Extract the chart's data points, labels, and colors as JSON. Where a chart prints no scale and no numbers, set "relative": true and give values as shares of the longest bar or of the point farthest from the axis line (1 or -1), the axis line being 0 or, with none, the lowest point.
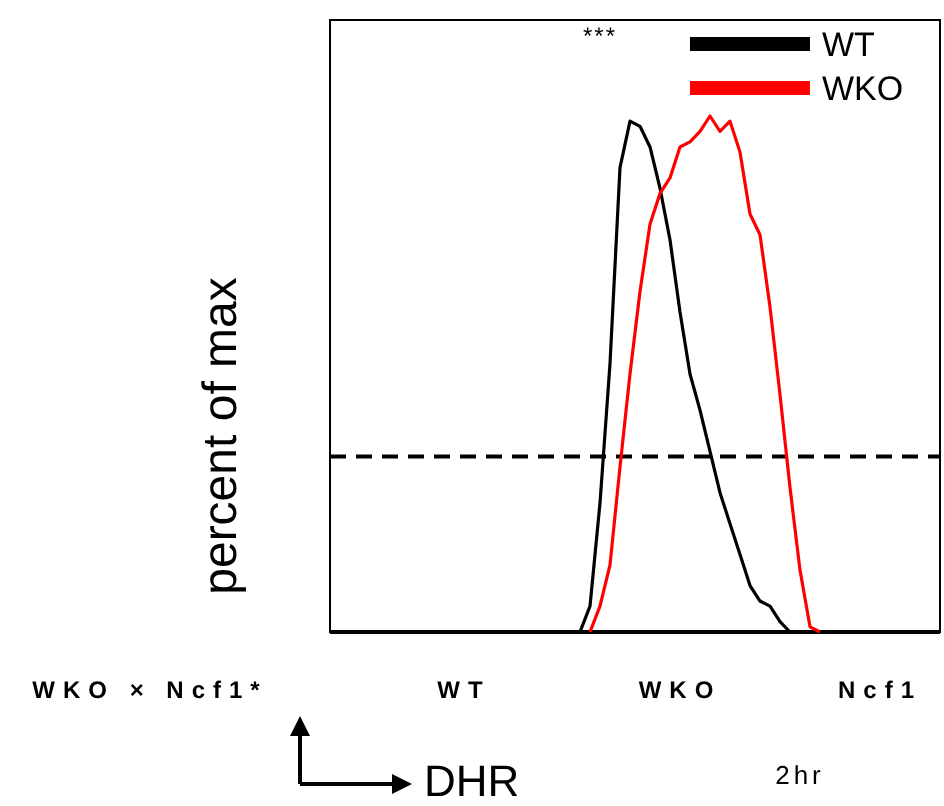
{
  "chart_data": {
    "type": "line",
    "relative": true,
    "ylabel": "percent of max",
    "xlabel": "DHR",
    "legend": "top right",
    "line_style": "solid",
    "marker": "none",
    "categories": [
      null,
      null,
      null,
      null,
      null,
      null,
      null,
      null,
      null,
      null,
      null,
      null,
      null,
      null,
      null,
      null,
      null,
      null,
      null,
      null,
      null,
      null,
      null,
      null,
      null,
      null,
      null,
      null,
      null,
      null,
      null,
      null,
      null,
      null,
      null,
      null,
      null,
      null,
      null,
      null,
      null,
      null,
      null,
      null,
      null,
      null,
      null,
      null,
      null,
      null,
      null,
      null,
      null,
      null,
      null,
      null,
      null,
      null,
      null,
      null,
      null,
      null
    ],
    "series": [
      {
        "name": "WT",
        "color": "#000000",
        "values": [
          null,
          null,
          null,
          null,
          null,
          null,
          null,
          null,
          null,
          null,
          null,
          null,
          null,
          null,
          null,
          null,
          null,
          null,
          null,
          null,
          null,
          null,
          null,
          null,
          null,
          0,
          0.05,
          0.25,
          0.52,
          0.9,
          0.99,
          0.98,
          0.94,
          0.86,
          0.76,
          0.62,
          0.5,
          0.43,
          0.35,
          0.27,
          0.21,
          0.15,
          0.09,
          0.06,
          0.05,
          0.02,
          0,
          null,
          null,
          null,
          null,
          null,
          null,
          null,
          null,
          null,
          null,
          null,
          null,
          null,
          null,
          null
        ]
      },
      {
        "name": "WKO",
        "color": "#ff0000",
        "values": [
          null,
          null,
          null,
          null,
          null,
          null,
          null,
          null,
          null,
          null,
          null,
          null,
          null,
          null,
          null,
          null,
          null,
          null,
          null,
          null,
          null,
          null,
          null,
          null,
          null,
          null,
          0,
          0.05,
          0.13,
          0.32,
          0.5,
          0.66,
          0.79,
          0.85,
          0.88,
          0.94,
          0.95,
          0.97,
          1,
          0.97,
          0.99,
          0.93,
          0.81,
          0.77,
          0.63,
          0.46,
          0.28,
          0.12,
          0.01,
          0,
          null,
          null,
          null,
          null,
          null,
          null,
          null,
          null,
          null,
          null,
          null,
          null
        ]
      }
    ],
    "ref_lines": [
      {
        "axis": "y",
        "value": 0.34,
        "color": "#000000",
        "line_style": "dashed"
      }
    ],
    "annotations": [
      "***",
      "WKO × Ncf1*",
      "WT",
      "WKO",
      "Ncf1",
      "2hr"
    ]
  }
}
